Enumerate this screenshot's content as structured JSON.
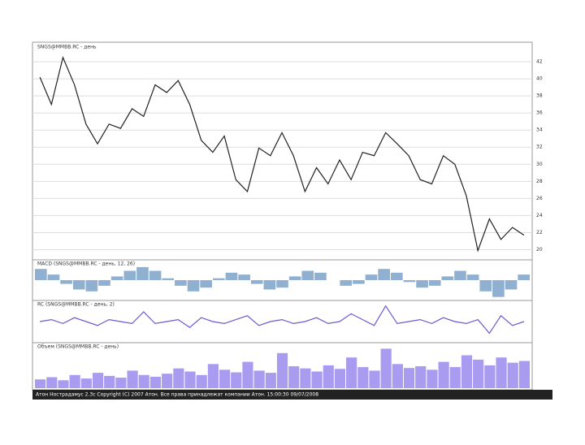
{
  "chart_data": [
    {
      "type": "line",
      "title": "SNGS@MMBB.RC - день",
      "color": "#222222",
      "grid": true,
      "values": [
        40.2,
        37.0,
        42.5,
        39.3,
        34.7,
        32.4,
        34.7,
        34.2,
        36.5,
        35.6,
        39.3,
        38.4,
        39.8,
        37.0,
        32.8,
        31.4,
        33.3,
        28.2,
        26.8,
        31.9,
        31.0,
        33.7,
        31.0,
        26.8,
        29.6,
        27.7,
        30.5,
        28.2,
        31.4,
        31.0,
        33.7,
        32.4,
        31.0,
        28.2,
        27.7,
        31.0,
        30.0,
        26.3,
        19.9,
        23.6,
        21.2,
        22.6,
        21.7
      ],
      "ylim": [
        19,
        44
      ],
      "yticks": [
        20,
        22,
        24,
        26,
        28,
        30,
        32,
        34,
        36,
        38,
        40,
        42
      ]
    },
    {
      "type": "bar",
      "title": "MACD (SNGS@MMBB.RC - день, 12, 26)",
      "color": "#8fb0d0",
      "values": [
        0.6,
        0.3,
        -0.2,
        -0.5,
        -0.6,
        -0.3,
        0.2,
        0.5,
        0.7,
        0.5,
        0.1,
        -0.3,
        -0.6,
        -0.4,
        0.1,
        0.4,
        0.3,
        -0.2,
        -0.5,
        -0.4,
        0.2,
        0.5,
        0.4,
        0.0,
        -0.3,
        -0.2,
        0.3,
        0.6,
        0.4,
        -0.1,
        -0.4,
        -0.3,
        0.2,
        0.5,
        0.3,
        -0.6,
        -0.9,
        -0.5,
        0.3
      ],
      "ylim": [
        -1,
        1
      ]
    },
    {
      "type": "line",
      "title": "RC (SNGS@MMBB.RC - день, 2)",
      "color": "#6a5acd",
      "values": [
        0,
        1,
        -1,
        2,
        0,
        -2,
        1,
        0,
        -1,
        5,
        -1,
        0,
        1,
        -3,
        2,
        0,
        -1,
        1,
        3,
        -2,
        0,
        1,
        -1,
        0,
        2,
        -1,
        0,
        4,
        1,
        -2,
        8,
        -1,
        0,
        1,
        -1,
        2,
        0,
        -1,
        1,
        -6,
        3,
        -2,
        0
      ],
      "ylim": [
        -10,
        10
      ]
    },
    {
      "type": "bar",
      "title": "Объем (SNGS@MMBB.RC - день)",
      "color": "#a99bf0",
      "values": [
        20,
        25,
        18,
        30,
        22,
        35,
        28,
        24,
        40,
        30,
        26,
        33,
        45,
        38,
        30,
        55,
        42,
        36,
        60,
        40,
        35,
        80,
        50,
        45,
        38,
        52,
        44,
        70,
        48,
        40,
        90,
        55,
        46,
        50,
        42,
        60,
        48,
        75,
        65,
        52,
        70,
        58,
        62
      ],
      "ylim": [
        0,
        100
      ]
    }
  ]
}
